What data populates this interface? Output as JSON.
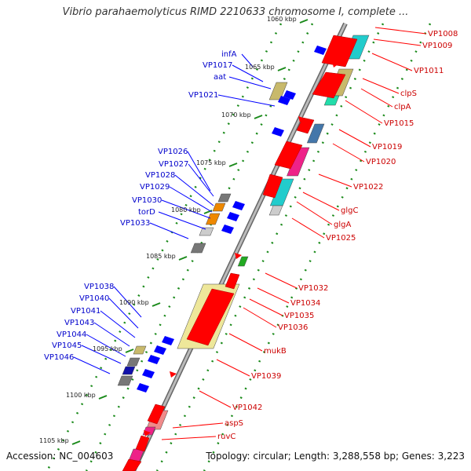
{
  "header": {
    "title": "Vibrio parahaemolyticus RIMD 2210633 chromosome I, complete ..."
  },
  "footer": {
    "accession": "Accession: NC_004603",
    "stats": "Topology: circular; Length: 3,288,558 bp; Genes: 3,223"
  },
  "colors": {
    "forward": "#ff0000",
    "reverse": "#0000ff",
    "backbone": "#888888",
    "tick": "#1a8a1a"
  },
  "kbp_marks": [
    "1060 kbp",
    "1065 kbp",
    "1070 kbp",
    "1075 kbp",
    "1080 kbp",
    "1085 kbp",
    "1090 kbp",
    "1095 kbp",
    "1100 kbp",
    "1105 kbp"
  ],
  "left_labels": [
    "infA",
    "VP1017",
    "aat",
    "VP1021",
    "VP1026",
    "VP1027",
    "VP1028",
    "VP1029",
    "VP1030",
    "torD",
    "VP1033",
    "VP1038",
    "VP1040",
    "VP1041",
    "VP1043",
    "VP1044",
    "VP1045",
    "VP1046"
  ],
  "right_labels": [
    "VP1008",
    "VP1009",
    "VP1011",
    "clpS",
    "clpA",
    "VP1015",
    "VP1019",
    "VP1020",
    "VP1022",
    "glgC",
    "glgA",
    "VP1025",
    "VP1032",
    "VP1034",
    "VP1035",
    "VP1036",
    "mukB",
    "VP1039",
    "VP1042",
    "aspS",
    "ruvC"
  ]
}
